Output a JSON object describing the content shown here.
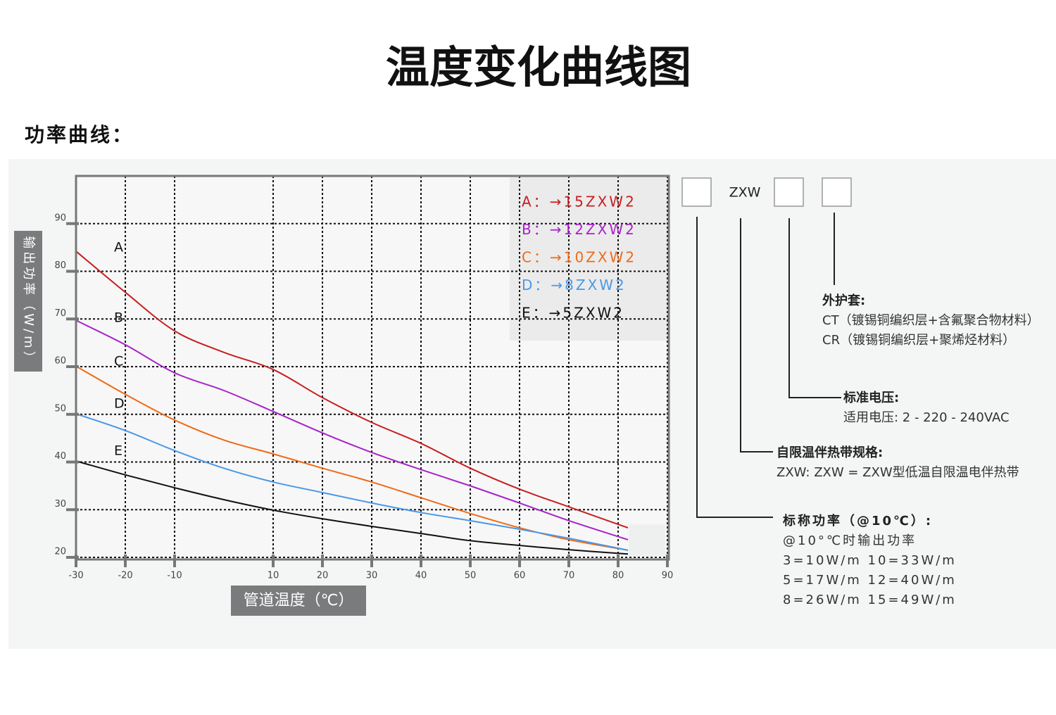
{
  "page": {
    "title": "温度变化曲线图",
    "subtitle": "功率曲线："
  },
  "chart_data": {
    "type": "line",
    "x_label": "管道温度（℃）",
    "y_label": "输出功率（W/m）",
    "x": [
      -30,
      -20,
      -10,
      0,
      10,
      20,
      30,
      40,
      50,
      60,
      70,
      82
    ],
    "xlim": [
      -30,
      90
    ],
    "xticks": [
      -30,
      -20,
      -10,
      10,
      20,
      30,
      40,
      50,
      60,
      70,
      80,
      90
    ],
    "ylim": [
      20,
      100
    ],
    "yticks": [
      20,
      30,
      40,
      50,
      60,
      70,
      80,
      90
    ],
    "grid": true,
    "legend_position": "upper right",
    "series": [
      {
        "name": "A",
        "legend": "A：→15ZXW2",
        "color": "#c81e1e",
        "values": [
          84.2,
          75.6,
          67.5,
          63,
          59.4,
          53.5,
          48.3,
          43.9,
          38.7,
          34.3,
          30.6,
          26.2
        ]
      },
      {
        "name": "B",
        "legend": "B：→12ZXW2",
        "color": "#a723c9",
        "values": [
          69.7,
          64.6,
          58.7,
          55,
          50.6,
          46.1,
          42,
          38.4,
          35,
          31.4,
          27.7,
          23.7
        ]
      },
      {
        "name": "C",
        "legend": "C：→10ZXW2",
        "color": "#f06a18",
        "values": [
          60.1,
          54.2,
          48.8,
          44.6,
          41.7,
          38.7,
          35.8,
          32.5,
          29.2,
          26.2,
          23.7,
          21.5
        ]
      },
      {
        "name": "D",
        "legend": "D：→8ZXW2",
        "color": "#4a98e8",
        "values": [
          50.1,
          46.6,
          42.4,
          38.7,
          35.8,
          33.6,
          31.4,
          29.4,
          27.7,
          25.9,
          24,
          21.5
        ]
      },
      {
        "name": "E",
        "legend": "E：→5ZXW2",
        "color": "#111111",
        "values": [
          40.2,
          37.3,
          34.6,
          32.1,
          29.9,
          28.1,
          26.5,
          25,
          23.5,
          22.5,
          21.6,
          20.7
        ]
      }
    ]
  },
  "model_diagram": {
    "code": "ZXW",
    "sheath": {
      "title": "外护套:",
      "lines": [
        "CT（镀锡铜编织层+含氟聚合物材料）",
        "CR（镀锡铜编织层+聚烯烃材料）"
      ]
    },
    "voltage": {
      "title": "标准电压:",
      "lines": [
        "适用电压: 2 - 220 - 240VAC"
      ]
    },
    "spec": {
      "title": "自限温伴热带规格:",
      "lines": [
        "ZXW: ZXW = ZXW型低温自限温电伴热带"
      ]
    },
    "power": {
      "title": "标称功率（@10℃）:",
      "lines": [
        "@10°℃时输出功率",
        "3=10W/m  10=33W/m",
        "5=17W/m  12=40W/m",
        "8=26W/m  15=49W/m"
      ]
    }
  }
}
